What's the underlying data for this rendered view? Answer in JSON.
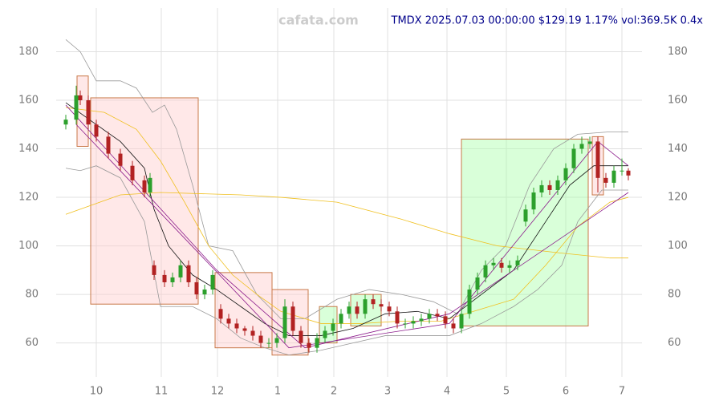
{
  "chart_data": {
    "type": "candlestick",
    "watermark": "cafata.com",
    "title": "TMDX 2025.07.03 00:00:00 $129.19 1.17% vol:369.5K 0.4x",
    "xlim": [
      70,
      800
    ],
    "ylim": [
      46,
      198
    ],
    "xticks": [
      {
        "value": 120,
        "label": "10"
      },
      {
        "value": 201,
        "label": "11"
      },
      {
        "value": 271,
        "label": "12"
      },
      {
        "value": 346,
        "label": "1"
      },
      {
        "value": 416,
        "label": "2"
      },
      {
        "value": 483,
        "label": "3"
      },
      {
        "value": 557,
        "label": "4"
      },
      {
        "value": 631,
        "label": "5"
      },
      {
        "value": 705,
        "label": "6"
      },
      {
        "value": 775,
        "label": "7"
      }
    ],
    "yticks": [
      60,
      80,
      100,
      120,
      140,
      160,
      180
    ],
    "grid": true,
    "up_color": "#2ca02c",
    "down_color": "#b22222",
    "zones": [
      {
        "x": [
          113,
          247
        ],
        "y": [
          76,
          161
        ],
        "color": "#ffcccc"
      },
      {
        "x": [
          96,
          110
        ],
        "y": [
          141,
          170
        ],
        "color": "#ffcccc"
      },
      {
        "x": [
          268,
          339
        ],
        "y": [
          58,
          89
        ],
        "color": "#ffcccc"
      },
      {
        "x": [
          339,
          384
        ],
        "y": [
          55,
          82
        ],
        "color": "#ffcccc"
      },
      {
        "x": [
          398,
          420
        ],
        "y": [
          60,
          75
        ],
        "color": "#aaffaa"
      },
      {
        "x": [
          437,
          475
        ],
        "y": [
          67,
          80
        ],
        "color": "#aaffaa"
      },
      {
        "x": [
          575,
          733
        ],
        "y": [
          67,
          144
        ],
        "color": "#aaffaa"
      },
      {
        "x": [
          738,
          752
        ],
        "y": [
          121,
          145
        ],
        "color": "#ffcccc"
      }
    ],
    "candles": {
      "x": [
        82,
        95,
        100,
        110,
        120,
        135,
        150,
        165,
        180,
        187,
        192,
        205,
        215,
        225,
        235,
        245,
        255,
        265,
        275,
        285,
        295,
        305,
        315,
        325,
        335,
        345,
        355,
        365,
        375,
        385,
        395,
        405,
        415,
        425,
        435,
        445,
        455,
        465,
        475,
        485,
        495,
        505,
        515,
        525,
        535,
        545,
        555,
        565,
        575,
        585,
        595,
        605,
        615,
        625,
        635,
        645,
        655,
        665,
        675,
        685,
        695,
        705,
        715,
        725,
        735,
        745,
        755,
        765,
        775,
        783
      ],
      "open": [
        150,
        152,
        162,
        160,
        150,
        145,
        138,
        133,
        127,
        122,
        92,
        88,
        85,
        87,
        92,
        85,
        80,
        82,
        74,
        70,
        68,
        66,
        65,
        63,
        60,
        60,
        62,
        75,
        65,
        60,
        58,
        62,
        65,
        68,
        72,
        75,
        72,
        78,
        76,
        75,
        73,
        68,
        68,
        69,
        70,
        72,
        71,
        68,
        66,
        72,
        82,
        87,
        92,
        93,
        91,
        92,
        110,
        115,
        122,
        125,
        123,
        127,
        132,
        140,
        142,
        143,
        128,
        126,
        131,
        131
      ],
      "high": [
        154,
        166,
        164,
        162,
        152,
        147,
        140,
        135,
        129,
        130,
        94,
        90,
        89,
        94,
        94,
        87,
        84,
        90,
        76,
        72,
        70,
        67,
        67,
        65,
        62,
        64,
        78,
        77,
        67,
        62,
        64,
        67,
        70,
        74,
        77,
        77,
        80,
        80,
        78,
        77,
        75,
        70,
        71,
        72,
        74,
        74,
        73,
        70,
        74,
        84,
        89,
        94,
        95,
        95,
        94,
        96,
        117,
        124,
        127,
        127,
        129,
        134,
        142,
        145,
        145,
        145,
        130,
        133,
        136,
        132
      ],
      "low": [
        148,
        150,
        158,
        148,
        143,
        136,
        131,
        125,
        120,
        120,
        86,
        83,
        83,
        85,
        83,
        78,
        78,
        80,
        68,
        66,
        64,
        63,
        61,
        58,
        58,
        58,
        60,
        63,
        58,
        56,
        56,
        60,
        63,
        66,
        70,
        70,
        70,
        74,
        73,
        71,
        66,
        66,
        66,
        67,
        68,
        69,
        66,
        64,
        64,
        70,
        80,
        85,
        90,
        89,
        89,
        90,
        108,
        113,
        120,
        121,
        121,
        125,
        130,
        138,
        140,
        122,
        124,
        124,
        129,
        127
      ],
      "close": [
        152,
        162,
        160,
        150,
        145,
        138,
        133,
        127,
        122,
        128,
        88,
        85,
        87,
        92,
        85,
        80,
        82,
        88,
        70,
        68,
        66,
        65,
        63,
        60,
        60,
        62,
        75,
        65,
        60,
        58,
        62,
        65,
        68,
        72,
        75,
        72,
        78,
        76,
        75,
        73,
        68,
        68,
        69,
        70,
        72,
        71,
        68,
        66,
        72,
        82,
        87,
        92,
        93,
        91,
        92,
        94,
        115,
        122,
        125,
        123,
        127,
        132,
        140,
        142,
        143,
        128,
        126,
        131,
        131,
        129
      ]
    },
    "lines": [
      {
        "color": "#999999",
        "x": [
          82,
          100,
          120,
          150,
          170,
          190,
          205,
          220,
          240,
          260,
          290,
          320,
          350,
          380,
          420,
          460,
          500,
          540,
          570,
          600,
          630,
          660,
          690,
          720,
          760,
          783
        ],
        "values": [
          185,
          180,
          168,
          168,
          165,
          155,
          158,
          148,
          125,
          100,
          98,
          80,
          70,
          70,
          78,
          82,
          80,
          77,
          72,
          90,
          100,
          125,
          140,
          146,
          147,
          147
        ]
      },
      {
        "color": "#999999",
        "x": [
          82,
          100,
          120,
          150,
          180,
          200,
          240,
          270,
          300,
          330,
          360,
          400,
          440,
          480,
          520,
          560,
          600,
          640,
          670,
          700,
          720,
          750,
          783
        ],
        "values": [
          132,
          131,
          133,
          128,
          110,
          75,
          75,
          70,
          62,
          58,
          55,
          57,
          60,
          63,
          63,
          63,
          68,
          75,
          82,
          92,
          110,
          123,
          123
        ]
      },
      {
        "color": "#f0c020",
        "x": [
          82,
          150,
          200,
          300,
          350,
          420,
          500,
          560,
          620,
          700,
          760,
          783
        ],
        "values": [
          113,
          121,
          122,
          121,
          120,
          118,
          111,
          105,
          100,
          97,
          95,
          95
        ]
      },
      {
        "color": "#f0c020",
        "x": [
          82,
          130,
          170,
          200,
          230,
          260,
          290,
          320,
          350,
          400,
          450,
          500,
          550,
          600,
          640,
          680,
          720,
          760,
          783
        ],
        "values": [
          157,
          155,
          148,
          135,
          118,
          100,
          88,
          80,
          73,
          68,
          68,
          69,
          69,
          74,
          78,
          92,
          108,
          118,
          120
        ]
      },
      {
        "color": "#111111",
        "x": [
          82,
          120,
          150,
          180,
          192,
          210,
          240,
          270,
          300,
          330,
          360,
          400,
          440,
          480,
          520,
          560,
          600,
          640,
          680,
          710,
          740,
          783
        ],
        "values": [
          159,
          150,
          143,
          132,
          115,
          100,
          88,
          82,
          75,
          68,
          63,
          63,
          66,
          72,
          73,
          70,
          80,
          90,
          110,
          125,
          133,
          133
        ]
      },
      {
        "color": "#8b1a8b",
        "x": [
          82,
          270,
          380,
          560,
          783
        ],
        "values": [
          158,
          90,
          58,
          72,
          122
        ]
      },
      {
        "color": "#8b1a8b",
        "x": [
          95,
          360,
          560,
          745,
          783
        ],
        "values": [
          150,
          58,
          68,
          143,
          133
        ]
      }
    ]
  }
}
